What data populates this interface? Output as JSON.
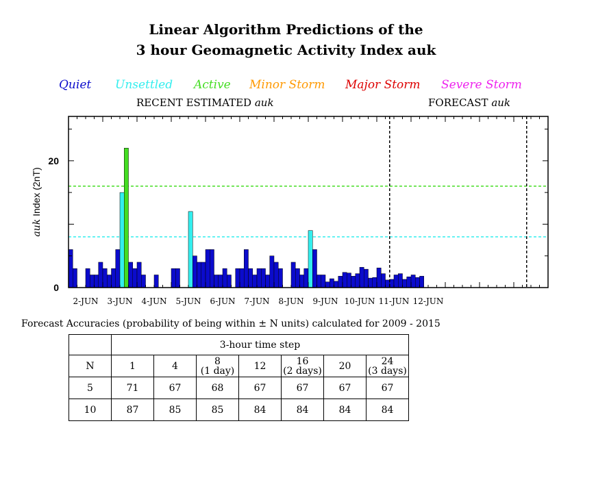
{
  "title": {
    "line1": "Linear Algorithm Predictions of the",
    "line2": "3 hour Geomagnetic Activity Index auk"
  },
  "legend": [
    {
      "label": "Quiet",
      "color": "#0b0bcc"
    },
    {
      "label": "Unsettled",
      "color": "#33eeee"
    },
    {
      "label": "Active",
      "color": "#44dd22"
    },
    {
      "label": "Minor Storm",
      "color": "#ff9900"
    },
    {
      "label": "Major Storm",
      "color": "#dd0000"
    },
    {
      "label": "Severe Storm",
      "color": "#ee22ee"
    }
  ],
  "sections": {
    "recent_prefix": "RECENT ESTIMATED ",
    "recent_var": "auk",
    "forecast_prefix": "FORECAST ",
    "forecast_var": "auk"
  },
  "chart_data": {
    "type": "bar",
    "ylabel_var": "auk",
    "ylabel_rest": " Index (2nT)",
    "ylim": [
      0,
      27
    ],
    "yticks": [
      0,
      20
    ],
    "x_tick_labels": [
      "2-JUN",
      "3-JUN",
      "4-JUN",
      "5-JUN",
      "6-JUN",
      "7-JUN",
      "8-JUN",
      "9-JUN",
      "10-JUN",
      "11-JUN",
      "12-JUN"
    ],
    "thresholds": [
      {
        "name": "Unsettled",
        "value": 8,
        "color": "#33eeee"
      },
      {
        "name": "Active",
        "value": 16,
        "color": "#44dd22"
      }
    ],
    "forecast_start_index": 75,
    "forecast_end_index": 107,
    "values": [
      6,
      3,
      0,
      0,
      3,
      2,
      2,
      4,
      3,
      2,
      3,
      6,
      15,
      22,
      4,
      3,
      4,
      2,
      0,
      0,
      2,
      0,
      0,
      0,
      3,
      3,
      0,
      0,
      12,
      5,
      4,
      4,
      6,
      6,
      2,
      2,
      3,
      2,
      0,
      3,
      3,
      6,
      3,
      2,
      3,
      3,
      2,
      5,
      4,
      3,
      0,
      0,
      4,
      3,
      2,
      3,
      9,
      6,
      2,
      2,
      0.9,
      1.4,
      1,
      1.8,
      2.4,
      2.3,
      1.8,
      2.2,
      3.2,
      2.9,
      1.5,
      1.6,
      3.1,
      2.2,
      1.2,
      1.3,
      2,
      2.2,
      1.3,
      1.7,
      2,
      1.6,
      1.8
    ],
    "colors": {
      "quiet": "#0b0bcc",
      "unsettled": "#33eeee",
      "active": "#44dd22"
    }
  },
  "accuracy": {
    "title": "Forecast Accuracies (probability of being within ± N units) calculated for 2009 - 2015",
    "timestep_header": "3-hour time step",
    "n_header": "N",
    "steps": [
      {
        "l1": "",
        "l2": "1"
      },
      {
        "l1": "",
        "l2": "4"
      },
      {
        "l1": "8",
        "l2": "(1 day)"
      },
      {
        "l1": "",
        "l2": "12"
      },
      {
        "l1": "16",
        "l2": "(2 days)"
      },
      {
        "l1": "",
        "l2": "20"
      },
      {
        "l1": "24",
        "l2": "(3 days)"
      }
    ],
    "rows": [
      {
        "n": "5",
        "vals": [
          "71",
          "67",
          "68",
          "67",
          "67",
          "67",
          "67"
        ]
      },
      {
        "n": "10",
        "vals": [
          "87",
          "85",
          "85",
          "84",
          "84",
          "84",
          "84"
        ]
      }
    ]
  }
}
